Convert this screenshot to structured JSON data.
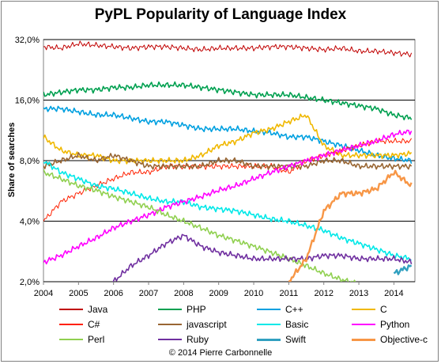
{
  "title": "PyPL Popularity of Language Index",
  "copyright": "© 2014 Pierre Carbonnelle",
  "chart_data": {
    "type": "line",
    "title": "PyPL Popularity of Language Index",
    "ylabel": "Share of searches",
    "xlabel": "",
    "yscale": "log",
    "ylim": [
      2.0,
      32.0
    ],
    "xlim": [
      2004,
      2014.6
    ],
    "yticks": [
      "2,0%",
      "4,0%",
      "8,0%",
      "16,0%",
      "32,0%"
    ],
    "ytick_values": [
      2,
      4,
      8,
      16,
      32
    ],
    "xticks": [
      "2004",
      "2005",
      "2006",
      "2007",
      "2008",
      "2009",
      "2010",
      "2011",
      "2012",
      "2013",
      "2014"
    ],
    "grid": true,
    "legend_position": "bottom",
    "x": [
      2004,
      2004.5,
      2005,
      2005.5,
      2006,
      2006.5,
      2007,
      2007.5,
      2008,
      2008.5,
      2009,
      2009.5,
      2010,
      2010.5,
      2011,
      2011.5,
      2012,
      2012.5,
      2013,
      2013.5,
      2014,
      2014.5
    ],
    "series": [
      {
        "name": "Java",
        "color": "#c00000",
        "width": 1,
        "values": [
          29.5,
          29,
          30.5,
          30,
          29.5,
          29,
          29.5,
          29.5,
          29,
          28.5,
          29,
          29,
          29,
          29.5,
          29.5,
          29,
          28.5,
          29,
          28,
          28,
          27.5,
          27
        ]
      },
      {
        "name": "PHP",
        "color": "#00a050",
        "width": 1.6,
        "values": [
          17,
          17.5,
          18,
          18,
          18.5,
          18.5,
          19,
          19,
          19,
          18.5,
          18,
          17.5,
          17,
          17,
          17,
          16.5,
          16,
          15.5,
          15,
          14.5,
          13.5,
          13
        ]
      },
      {
        "name": "C++",
        "color": "#00a0e0",
        "width": 1.6,
        "values": [
          14.5,
          14.5,
          14,
          13.5,
          13.5,
          13,
          12.5,
          12.5,
          12,
          11.5,
          11.5,
          11.5,
          11.2,
          11,
          10.5,
          10.5,
          10,
          9.5,
          9,
          8.5,
          8.2,
          8
        ]
      },
      {
        "name": "C",
        "color": "#f0b800",
        "width": 1.6,
        "values": [
          10.5,
          9,
          8.5,
          8.5,
          8,
          8,
          8,
          8,
          8,
          8.5,
          9.5,
          10,
          11,
          11.5,
          12.5,
          13.5,
          9.5,
          8.5,
          8.5,
          8.5,
          8.5,
          8.7
        ]
      },
      {
        "name": "C#",
        "color": "#ff2000",
        "width": 1,
        "values": [
          4,
          5,
          5.5,
          6,
          6.5,
          7,
          7,
          7.5,
          7.5,
          7.5,
          7.5,
          7.5,
          7.5,
          7.5,
          7,
          8,
          8.5,
          9,
          9.5,
          10,
          10,
          10
        ]
      },
      {
        "name": "javascript",
        "color": "#996633",
        "width": 1.6,
        "values": [
          7.5,
          8,
          8.5,
          8,
          8.5,
          8,
          7.5,
          7.5,
          7.5,
          7.5,
          8,
          8,
          7.5,
          7.5,
          7.5,
          7.5,
          8,
          8,
          7.5,
          7.5,
          7.5,
          7.5
        ]
      },
      {
        "name": "Basic",
        "color": "#00e8e8",
        "width": 1.6,
        "values": [
          8,
          7,
          6.5,
          6,
          5.8,
          5.5,
          5.2,
          5,
          5,
          4.7,
          4.6,
          4.5,
          4.3,
          4.1,
          4,
          3.8,
          3.6,
          3.3,
          3.1,
          2.9,
          2.7,
          2.6
        ]
      },
      {
        "name": "Python",
        "color": "#ff00ff",
        "width": 1.6,
        "values": [
          2.5,
          2.7,
          3,
          3.3,
          3.7,
          4,
          4.3,
          4.7,
          5,
          5.3,
          5.7,
          6,
          6.5,
          7,
          7.5,
          8,
          8.5,
          9,
          9.5,
          10,
          10.8,
          11.2
        ]
      },
      {
        "name": "Perl",
        "color": "#90d050",
        "width": 1.6,
        "values": [
          7,
          6.5,
          6,
          5.7,
          5.3,
          5,
          4.7,
          4.3,
          4,
          3.7,
          3.4,
          3.2,
          3,
          2.8,
          2.6,
          2.4,
          2.2,
          2.05,
          1.95,
          1.9,
          1.85,
          1.8
        ]
      },
      {
        "name": "Ruby",
        "color": "#7030a0",
        "width": 1.6,
        "values": [
          null,
          null,
          null,
          1.8,
          2,
          2.4,
          2.7,
          3.1,
          3.4,
          3,
          2.8,
          2.7,
          2.6,
          2.6,
          2.6,
          2.6,
          2.7,
          2.7,
          2.6,
          2.6,
          2.6,
          2.5
        ]
      },
      {
        "name": "Swift",
        "color": "#31a0c0",
        "width": 2.4,
        "values": [
          null,
          null,
          null,
          null,
          null,
          null,
          null,
          null,
          null,
          null,
          null,
          null,
          null,
          null,
          null,
          null,
          null,
          null,
          null,
          null,
          2.2,
          2.4
        ]
      },
      {
        "name": "Objective-c",
        "color": "#f79646",
        "width": 2.4,
        "values": [
          null,
          null,
          null,
          null,
          null,
          null,
          null,
          null,
          null,
          null,
          null,
          null,
          null,
          null,
          2,
          2.6,
          4.5,
          5.5,
          5.5,
          5.8,
          7,
          6
        ]
      }
    ]
  }
}
